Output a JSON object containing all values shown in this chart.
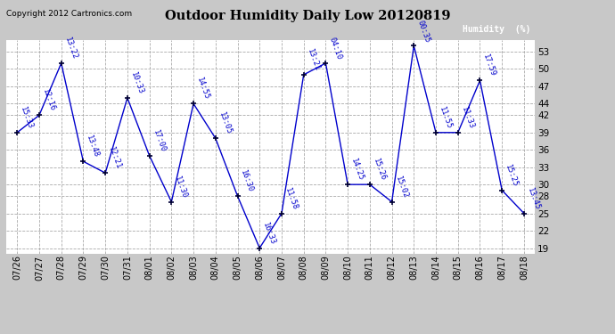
{
  "title": "Outdoor Humidity Daily Low 20120819",
  "background_color": "#c8c8c8",
  "plot_bg_color": "#ffffff",
  "line_color": "#0000cc",
  "marker_color": "#000033",
  "text_color": "#0000cc",
  "copyright_text": "Copyright 2012 Cartronics.com",
  "legend_label": "Humidity  (%)",
  "legend_bg": "#0000aa",
  "legend_text_color": "#ffffff",
  "ylim": [
    18,
    55
  ],
  "yticks": [
    19,
    22,
    25,
    28,
    30,
    33,
    36,
    39,
    42,
    44,
    47,
    50,
    53
  ],
  "dates": [
    "07/26",
    "07/27",
    "07/28",
    "07/29",
    "07/30",
    "07/31",
    "08/01",
    "08/02",
    "08/03",
    "08/04",
    "08/05",
    "08/06",
    "08/07",
    "08/08",
    "08/09",
    "08/10",
    "08/11",
    "08/12",
    "08/13",
    "08/14",
    "08/15",
    "08/16",
    "08/17",
    "08/18"
  ],
  "values": [
    39,
    42,
    51,
    34,
    32,
    45,
    35,
    27,
    44,
    38,
    28,
    19,
    25,
    49,
    51,
    30,
    30,
    27,
    54,
    39,
    39,
    48,
    29,
    25
  ],
  "times": [
    "15:33",
    "12:16",
    "13:22",
    "13:48",
    "12:21",
    "10:33",
    "17:00",
    "11:30",
    "14:55",
    "13:05",
    "16:30",
    "16:33",
    "11:58",
    "13:21",
    "04:10",
    "14:25",
    "15:26",
    "15:02",
    "00:35",
    "11:55",
    "11:33",
    "17:59",
    "15:25",
    "13:45"
  ]
}
